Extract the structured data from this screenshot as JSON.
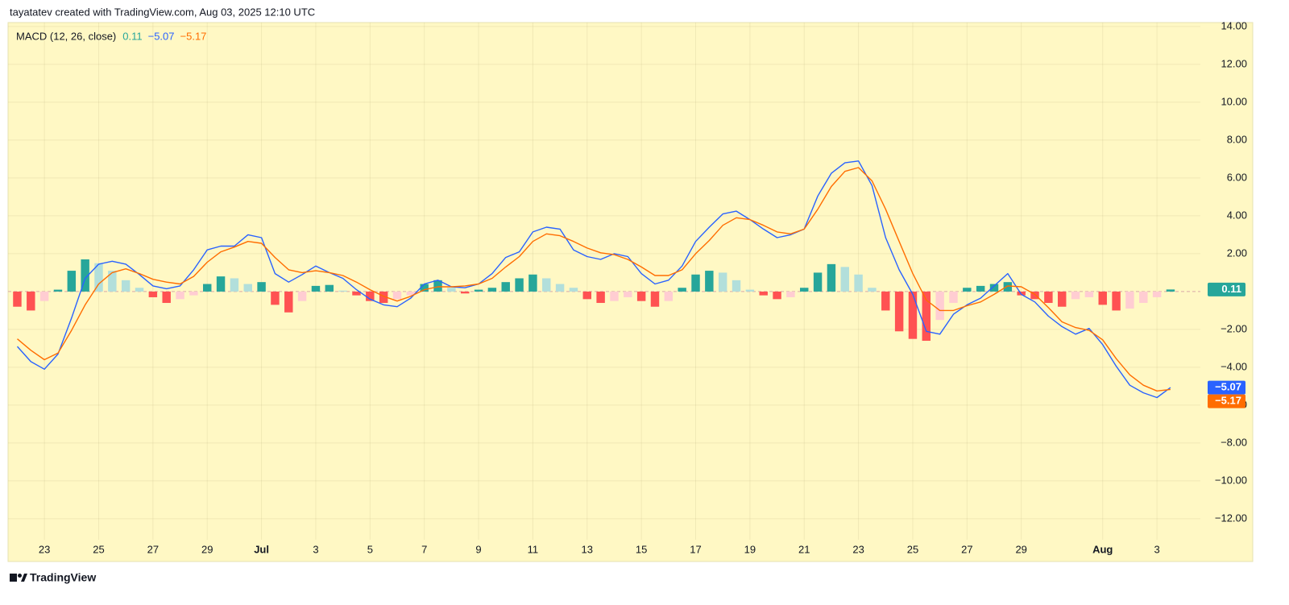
{
  "header": {
    "text": "tayatatev created with TradingView.com, Aug 03, 2025 12:10 UTC"
  },
  "footer": {
    "brand": "TradingView"
  },
  "chart_data": {
    "type": "macd",
    "title": "MACD (12, 26, close)",
    "x": [
      -1,
      -0.5,
      0,
      0.5,
      1,
      1.5,
      2,
      2.5,
      3,
      3.5,
      4,
      4.5,
      5,
      5.5,
      6,
      6.5,
      7,
      7.5,
      8,
      8.5,
      9,
      9.5,
      10,
      10.5,
      11,
      11.5,
      12,
      12.5,
      13,
      13.5,
      14,
      14.5,
      15,
      15.5,
      16,
      16.5,
      17,
      17.5,
      18,
      18.5,
      19,
      19.5,
      20,
      20.5,
      21,
      21.5,
      22,
      22.5,
      23,
      23.5,
      24,
      24.5,
      25,
      25.5,
      26,
      26.5,
      27,
      27.5,
      28,
      28.5,
      29,
      29.5,
      30,
      30.5,
      31,
      31.5,
      32,
      32.5,
      33,
      33.5,
      34,
      34.5,
      35,
      35.5,
      36,
      36.5,
      37,
      37.5,
      38,
      38.5,
      39,
      39.5,
      40,
      40.5,
      41,
      41.5
    ],
    "xlim": [
      -1.34,
      42.6
    ],
    "xticks": [
      {
        "value": 0,
        "label": "23"
      },
      {
        "value": 2,
        "label": "25"
      },
      {
        "value": 4,
        "label": "27"
      },
      {
        "value": 6,
        "label": "29"
      },
      {
        "value": 8,
        "label": "Jul"
      },
      {
        "value": 10,
        "label": "3"
      },
      {
        "value": 12,
        "label": "5"
      },
      {
        "value": 14,
        "label": "7"
      },
      {
        "value": 16,
        "label": "9"
      },
      {
        "value": 18,
        "label": "11"
      },
      {
        "value": 20,
        "label": "13"
      },
      {
        "value": 22,
        "label": "15"
      },
      {
        "value": 24,
        "label": "17"
      },
      {
        "value": 26,
        "label": "19"
      },
      {
        "value": 28,
        "label": "21"
      },
      {
        "value": 30,
        "label": "23"
      },
      {
        "value": 32,
        "label": "25"
      },
      {
        "value": 34,
        "label": "27"
      },
      {
        "value": 36,
        "label": "29"
      },
      {
        "value": 39,
        "label": "Aug"
      },
      {
        "value": 41,
        "label": "3"
      }
    ],
    "ylim": [
      -13.11,
      14.21
    ],
    "yticks": [
      {
        "value": 14,
        "label": "14.00"
      },
      {
        "value": 12,
        "label": "12.00"
      },
      {
        "value": 10,
        "label": "10.00"
      },
      {
        "value": 8,
        "label": "8.00"
      },
      {
        "value": 6,
        "label": "6.00"
      },
      {
        "value": 4,
        "label": "4.00"
      },
      {
        "value": 2,
        "label": "2.00"
      },
      {
        "value": -2,
        "label": "−2.00"
      },
      {
        "value": -4,
        "label": "−4.00"
      },
      {
        "value": -6,
        "label": "−6.00"
      },
      {
        "value": -8,
        "label": "−8.00"
      },
      {
        "value": -10,
        "label": "−10.00"
      },
      {
        "value": -12,
        "label": "−12.00"
      }
    ],
    "grid": true,
    "zero_line": true,
    "series": [
      {
        "kind": "histogram",
        "color": "#26a69a",
        "colors": [
          "#26a69a",
          "#b2dfdb",
          "#ffcdd2",
          "#ff5252"
        ],
        "last_value_label": "0.11",
        "values": [
          -0.8,
          -1.0,
          -0.5,
          0.1,
          1.1,
          1.7,
          1.5,
          1.1,
          0.6,
          0.2,
          -0.3,
          -0.6,
          -0.4,
          -0.2,
          0.4,
          0.8,
          0.7,
          0.4,
          0.5,
          -0.7,
          -1.1,
          -0.5,
          0.3,
          0.35,
          0.05,
          -0.2,
          -0.5,
          -0.6,
          -0.4,
          -0.2,
          0.4,
          0.6,
          0.2,
          -0.1,
          0.1,
          0.2,
          0.5,
          0.7,
          0.9,
          0.7,
          0.4,
          0.2,
          -0.4,
          -0.6,
          -0.5,
          -0.3,
          -0.5,
          -0.8,
          -0.5,
          0.2,
          0.9,
          1.1,
          1.0,
          0.6,
          0.1,
          -0.2,
          -0.4,
          -0.3,
          0.2,
          1.0,
          1.45,
          1.3,
          0.9,
          0.2,
          -1.0,
          -2.1,
          -2.5,
          -2.6,
          -1.5,
          -0.6,
          0.2,
          0.3,
          0.4,
          0.5,
          -0.2,
          -0.4,
          -0.6,
          -0.8,
          -0.4,
          -0.3,
          -0.7,
          -1.0,
          -0.9,
          -0.6,
          -0.3,
          0.11
        ]
      },
      {
        "kind": "line",
        "color": "#2962ff",
        "last_value_label": "−5.07",
        "values": [
          -2.9,
          -3.7,
          -4.1,
          -3.3,
          -1.4,
          0.7,
          1.45,
          1.6,
          1.45,
          0.9,
          0.3,
          0.15,
          0.3,
          1.15,
          2.2,
          2.4,
          2.4,
          3.0,
          2.85,
          0.95,
          0.5,
          0.9,
          1.35,
          1.0,
          0.7,
          0.1,
          -0.4,
          -0.7,
          -0.8,
          -0.35,
          0.4,
          0.6,
          0.25,
          0.2,
          0.4,
          0.95,
          1.8,
          2.1,
          3.15,
          3.4,
          3.3,
          2.2,
          1.85,
          1.7,
          2.0,
          1.85,
          0.95,
          0.4,
          0.6,
          1.35,
          2.65,
          3.4,
          4.1,
          4.25,
          3.8,
          3.3,
          2.85,
          3.0,
          3.3,
          5.05,
          6.25,
          6.8,
          6.9,
          5.6,
          2.85,
          1.15,
          -0.15,
          -2.1,
          -2.25,
          -1.2,
          -0.7,
          -0.35,
          0.3,
          0.95,
          -0.15,
          -0.55,
          -1.3,
          -1.85,
          -2.25,
          -1.95,
          -2.8,
          -3.95,
          -4.95,
          -5.35,
          -5.6,
          -5.07
        ]
      },
      {
        "kind": "line",
        "color": "#ff6d00",
        "last_value_label": "−5.17",
        "values": [
          -2.5,
          -3.1,
          -3.6,
          -3.25,
          -2.05,
          -0.7,
          0.4,
          1.0,
          1.2,
          0.95,
          0.65,
          0.5,
          0.4,
          0.8,
          1.55,
          2.1,
          2.35,
          2.65,
          2.55,
          1.8,
          1.15,
          1.0,
          1.1,
          1.0,
          0.85,
          0.5,
          0.1,
          -0.25,
          -0.5,
          -0.25,
          0.1,
          0.25,
          0.25,
          0.3,
          0.4,
          0.7,
          1.3,
          1.85,
          2.65,
          3.05,
          2.95,
          2.65,
          2.3,
          2.05,
          1.95,
          1.7,
          1.3,
          0.85,
          0.85,
          1.15,
          2.0,
          2.7,
          3.5,
          3.9,
          3.8,
          3.5,
          3.15,
          3.05,
          3.3,
          4.35,
          5.55,
          6.35,
          6.55,
          5.85,
          4.35,
          2.65,
          0.95,
          -0.45,
          -1.0,
          -1.0,
          -0.75,
          -0.55,
          -0.15,
          0.3,
          0.25,
          -0.15,
          -0.85,
          -1.6,
          -1.9,
          -2.05,
          -2.55,
          -3.55,
          -4.4,
          -4.95,
          -5.25,
          -5.17
        ]
      }
    ]
  }
}
